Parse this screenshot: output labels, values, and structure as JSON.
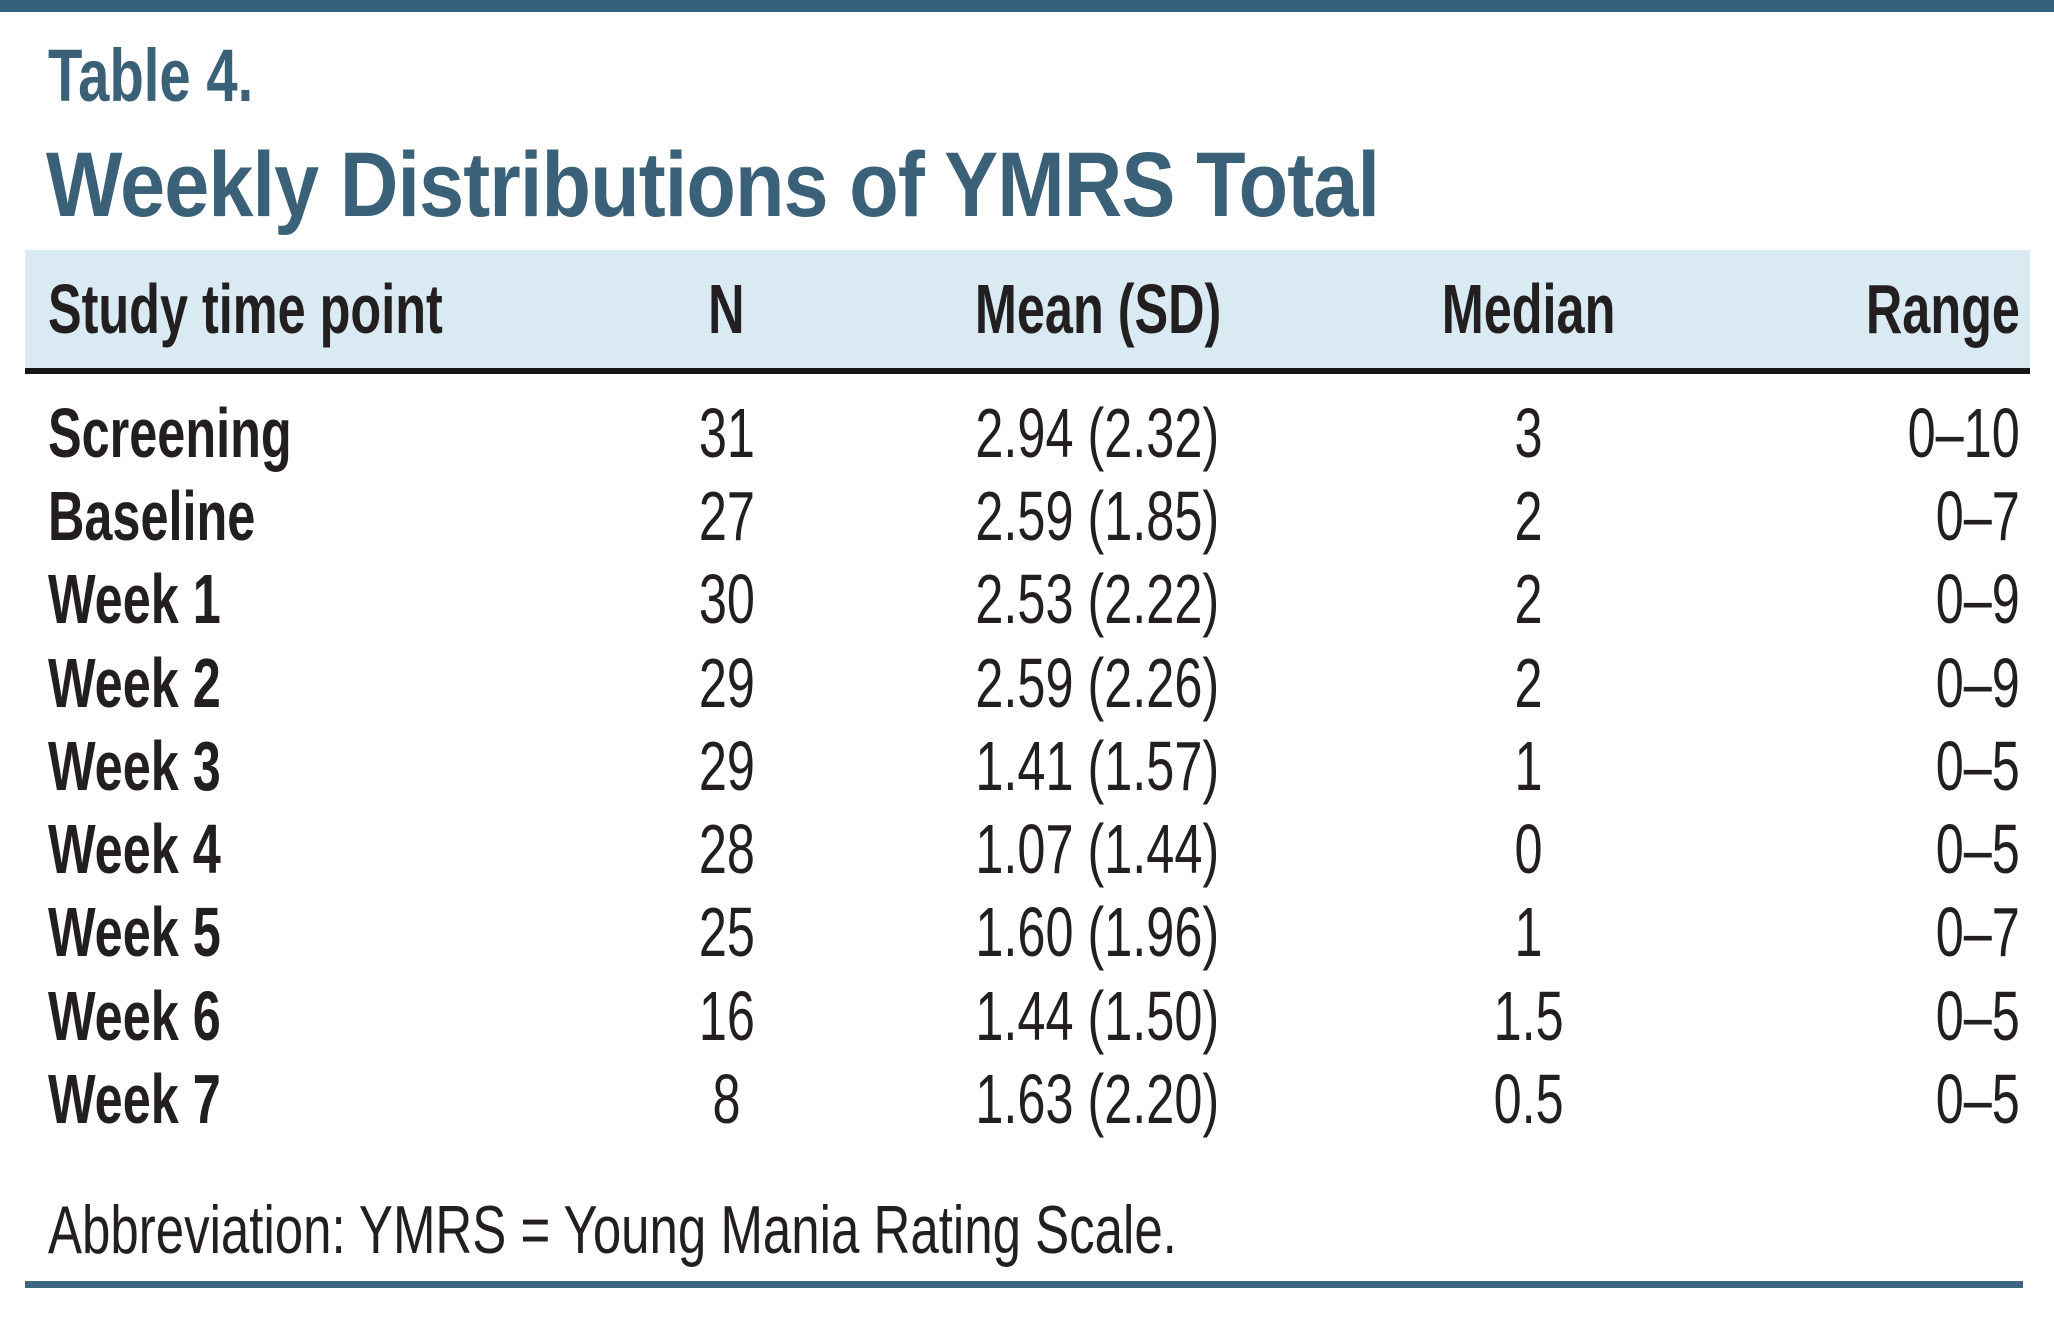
{
  "document": {
    "table_label": "Table 4.",
    "title": "Weekly Distributions of YMRS Total",
    "footnote": "Abbreviation: YMRS = Young Mania Rating Scale."
  },
  "table": {
    "columns": {
      "time_point": "Study time point",
      "n": "N",
      "mean_sd": "Mean (SD)",
      "median": "Median",
      "range": "Range"
    },
    "rows": [
      {
        "time_point": "Screening",
        "n": "31",
        "mean_sd": "2.94 (2.32)",
        "median": "3",
        "range": "0–10"
      },
      {
        "time_point": "Baseline",
        "n": "27",
        "mean_sd": "2.59 (1.85)",
        "median": "2",
        "range": "0–7"
      },
      {
        "time_point": "Week 1",
        "n": "30",
        "mean_sd": "2.53 (2.22)",
        "median": "2",
        "range": "0–9"
      },
      {
        "time_point": "Week 2",
        "n": "29",
        "mean_sd": "2.59 (2.26)",
        "median": "2",
        "range": "0–9"
      },
      {
        "time_point": "Week 3",
        "n": "29",
        "mean_sd": "1.41 (1.57)",
        "median": "1",
        "range": "0–5"
      },
      {
        "time_point": "Week 4",
        "n": "28",
        "mean_sd": "1.07 (1.44)",
        "median": "0",
        "range": "0–5"
      },
      {
        "time_point": "Week 5",
        "n": "25",
        "mean_sd": "1.60 (1.96)",
        "median": "1",
        "range": "0–7"
      },
      {
        "time_point": "Week 6",
        "n": "16",
        "mean_sd": "1.44 (1.50)",
        "median": "1.5",
        "range": "0–5"
      },
      {
        "time_point": "Week 7",
        "n": "8",
        "mean_sd": "1.63 (2.20)",
        "median": "0.5",
        "range": "0–5"
      }
    ]
  },
  "colors": {
    "accent_teal": "#3a6178",
    "rule_teal": "#3e6781",
    "header_band_blue": "#d9eaf3",
    "text_black": "#231f20"
  }
}
